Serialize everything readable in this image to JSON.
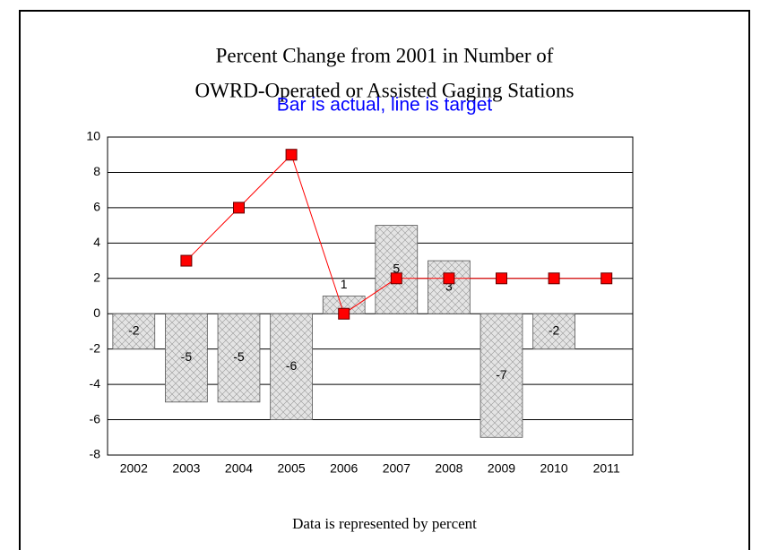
{
  "chart_data": {
    "type": "bar",
    "title": [
      "Percent Change from 2001 in Number of",
      "OWRD-Operated or Assisted Gaging Stations"
    ],
    "subtitle": "Bar is actual, line is target",
    "note": "Data is represented by percent",
    "categories": [
      "2002",
      "2003",
      "2004",
      "2005",
      "2006",
      "2007",
      "2008",
      "2009",
      "2010",
      "2011"
    ],
    "series": [
      {
        "type": "bar",
        "color": "#c8c8c8",
        "values": [
          -2,
          -5,
          -5,
          -6,
          1,
          5,
          3,
          -7,
          -2,
          null
        ]
      },
      {
        "type": "line",
        "color": "#ff0000",
        "values": [
          null,
          3,
          6,
          9,
          0,
          2,
          2,
          2,
          2,
          2
        ]
      }
    ],
    "ylim": [
      -8,
      10
    ],
    "yticks": [
      -8,
      -6,
      -4,
      -2,
      0,
      2,
      4,
      6,
      8,
      10
    ],
    "grid": true
  }
}
